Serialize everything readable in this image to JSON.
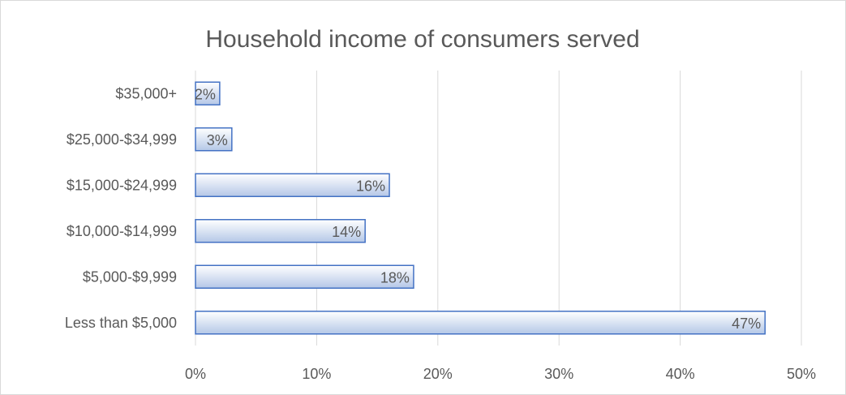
{
  "chart_data": {
    "type": "bar",
    "orientation": "horizontal",
    "title": "Household income of consumers served",
    "categories": [
      "$35,000+",
      "$25,000-$34,999",
      "$15,000-$24,999",
      "$10,000-$14,999",
      "$5,000-$9,999",
      "Less than $5,000"
    ],
    "values": [
      2,
      3,
      16,
      14,
      18,
      47
    ],
    "data_labels": [
      "2%",
      "3%",
      "16%",
      "14%",
      "18%",
      "47%"
    ],
    "x_ticks": [
      "0%",
      "10%",
      "20%",
      "30%",
      "40%",
      "50%"
    ],
    "xlim": [
      0,
      50
    ],
    "grid": true,
    "legend": "none",
    "colors": {
      "bar_fill_top": "#ffffff",
      "bar_fill_bottom": "#b4c7e7",
      "bar_stroke": "#4472c4"
    }
  }
}
